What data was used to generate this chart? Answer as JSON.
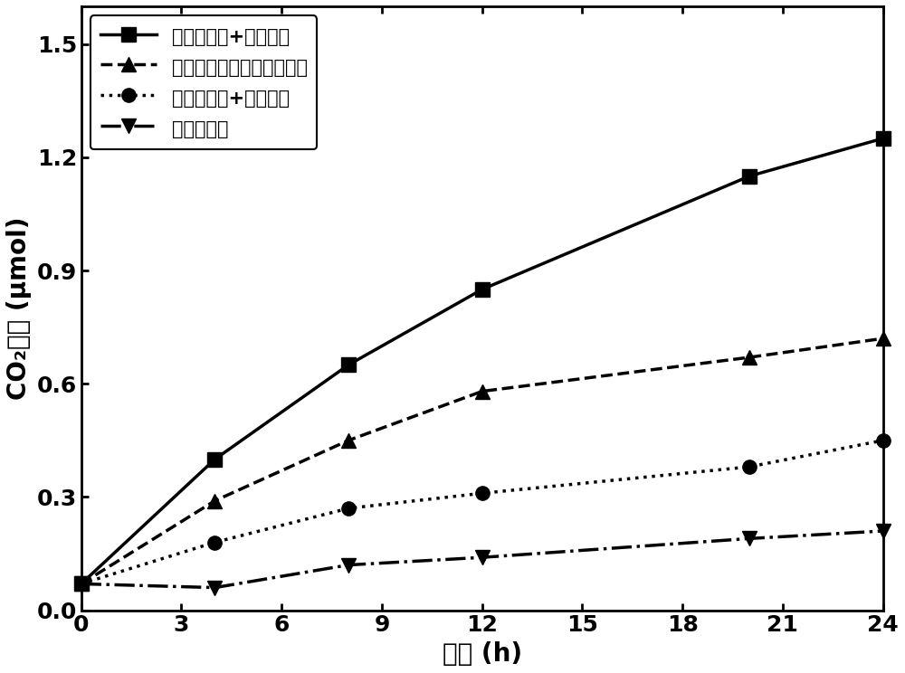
{
  "series": [
    {
      "label": "钒酸铋蝶翅+金纳米棒",
      "x": [
        0,
        4,
        8,
        12,
        20,
        24
      ],
      "y": [
        0.07,
        0.4,
        0.65,
        0.85,
        1.15,
        1.25
      ],
      "linestyle": "-",
      "marker": "s",
      "markersize": 11,
      "linewidth": 2.5,
      "color": "#000000"
    },
    {
      "label": "研磨后的粉末（结构破坏）",
      "x": [
        0,
        4,
        8,
        12,
        20,
        24
      ],
      "y": [
        0.07,
        0.29,
        0.45,
        0.58,
        0.67,
        0.72
      ],
      "linestyle": "--",
      "marker": "^",
      "markersize": 11,
      "linewidth": 2.5,
      "color": "#000000"
    },
    {
      "label": "钒酸铋平板+金纳米棒",
      "x": [
        0,
        4,
        8,
        12,
        20,
        24
      ],
      "y": [
        0.07,
        0.18,
        0.27,
        0.31,
        0.38,
        0.45
      ],
      "linestyle": ":",
      "marker": "o",
      "markersize": 11,
      "linewidth": 2.5,
      "color": "#000000"
    },
    {
      "label": "钒酸铋蝶翅",
      "x": [
        0,
        4,
        8,
        12,
        20,
        24
      ],
      "y": [
        0.07,
        0.06,
        0.12,
        0.14,
        0.19,
        0.21
      ],
      "linestyle": "-.",
      "marker": "v",
      "markersize": 11,
      "linewidth": 2.5,
      "color": "#000000"
    }
  ],
  "xlabel": "时间 (h)",
  "ylabel": "CO₂产量 (μmol)",
  "xlim": [
    0,
    24
  ],
  "ylim": [
    0.0,
    1.6
  ],
  "xticks": [
    0,
    3,
    6,
    9,
    12,
    15,
    18,
    21,
    24
  ],
  "yticks": [
    0.0,
    0.3,
    0.6,
    0.9,
    1.2,
    1.5
  ],
  "legend_fontsize": 15,
  "axis_fontsize": 20,
  "tick_fontsize": 18,
  "background_color": "#ffffff",
  "figure_facecolor": "#ffffff"
}
